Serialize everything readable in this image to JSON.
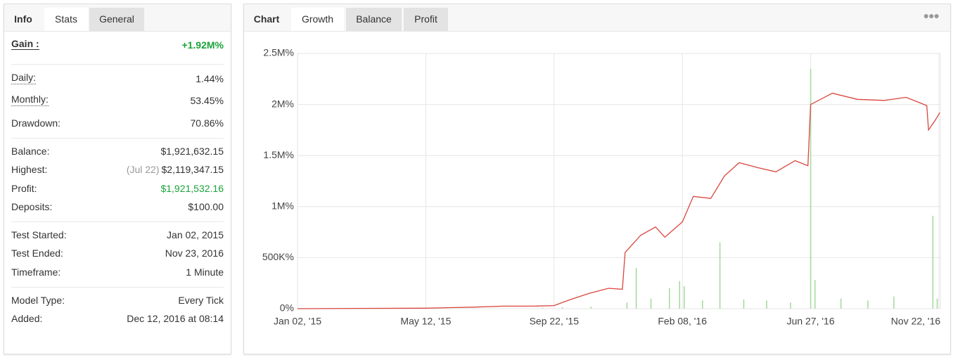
{
  "left_tabs": [
    "Info",
    "Stats",
    "General"
  ],
  "stats": {
    "gain": {
      "label": "Gain :",
      "value": "+1.92M%"
    },
    "groups": [
      [
        {
          "label": "Daily:",
          "value": "1.44%"
        },
        {
          "label": "Monthly:",
          "value": "53.45%"
        },
        {
          "label": "Drawdown:",
          "value": "70.86%"
        }
      ],
      [
        {
          "label": "Balance:",
          "value": "$1,921,632.15"
        },
        {
          "label": "Highest:",
          "note": "(Jul 22)",
          "value": "$2,119,347.15"
        },
        {
          "label": "Profit:",
          "value": "$1,921,532.16"
        },
        {
          "label": "Deposits:",
          "value": "$100.00"
        }
      ],
      [
        {
          "label": "Test Started:",
          "value": "Jan 02, 2015"
        },
        {
          "label": "Test Ended:",
          "value": "Nov 23, 2016"
        },
        {
          "label": "Timeframe:",
          "value": "1 Minute"
        }
      ],
      [
        {
          "label": "Model Type:",
          "value": "Every Tick"
        },
        {
          "label": "Added:",
          "value": "Dec 12, 2016 at 08:14"
        }
      ]
    ]
  },
  "chart_tabs": [
    "Chart",
    "Growth",
    "Balance",
    "Profit"
  ],
  "chart_data": {
    "type": "line",
    "grid": true,
    "xlim": [
      "2015-01-02",
      "2016-11-23"
    ],
    "xticks": [
      {
        "value": "2015-01-02",
        "label": "Jan 02, '15"
      },
      {
        "value": "2015-05-12",
        "label": "May 12, '15"
      },
      {
        "value": "2015-09-22",
        "label": "Sep 22, '15"
      },
      {
        "value": "2016-02-08",
        "label": "Feb 08, '16"
      },
      {
        "value": "2016-06-27",
        "label": "Jun 27, '16"
      },
      {
        "value": "2016-11-22",
        "label": "Nov 22, '16"
      }
    ],
    "ylim": [
      0,
      2500000
    ],
    "yticks": [
      {
        "value": 0,
        "label": "0%"
      },
      {
        "value": 500000,
        "label": "500K%"
      },
      {
        "value": 1000000,
        "label": "1M%"
      },
      {
        "value": 1500000,
        "label": "1.5M%"
      },
      {
        "value": 2000000,
        "label": "2M%"
      },
      {
        "value": 2500000,
        "label": "2.5M%"
      }
    ],
    "series": [
      {
        "type": "line",
        "color": "#d9453d",
        "x": [
          "2015-01-02",
          "2015-03-01",
          "2015-05-12",
          "2015-07-01",
          "2015-08-01",
          "2015-09-01",
          "2015-09-22",
          "2015-10-10",
          "2015-10-30",
          "2015-11-20",
          "2015-12-05",
          "2015-12-08",
          "2015-12-25",
          "2016-01-10",
          "2016-01-20",
          "2016-02-08",
          "2016-02-20",
          "2016-03-10",
          "2016-03-25",
          "2016-04-10",
          "2016-05-01",
          "2016-05-20",
          "2016-06-10",
          "2016-06-24",
          "2016-06-27",
          "2016-07-22",
          "2016-08-20",
          "2016-09-20",
          "2016-10-15",
          "2016-11-08",
          "2016-11-10",
          "2016-11-18",
          "2016-11-23"
        ],
        "values": [
          0,
          3000,
          5000,
          15000,
          25000,
          25000,
          30000,
          90000,
          150000,
          200000,
          190000,
          550000,
          720000,
          800000,
          700000,
          850000,
          1100000,
          1080000,
          1300000,
          1430000,
          1380000,
          1340000,
          1450000,
          1400000,
          2000000,
          2110000,
          2050000,
          2040000,
          2070000,
          1990000,
          1750000,
          1850000,
          1920000
        ]
      },
      {
        "type": "bar",
        "color": "#a8dba0",
        "x": [
          "2015-09-10",
          "2015-10-01",
          "2015-11-01",
          "2015-12-10",
          "2015-12-20",
          "2016-01-05",
          "2016-01-25",
          "2016-02-05",
          "2016-02-10",
          "2016-03-01",
          "2016-03-20",
          "2016-04-15",
          "2016-05-10",
          "2016-06-05",
          "2016-06-27",
          "2016-07-02",
          "2016-08-01",
          "2016-09-01",
          "2016-10-01",
          "2016-11-15",
          "2016-11-20"
        ],
        "values": [
          10000,
          15000,
          20000,
          60000,
          400000,
          100000,
          200000,
          270000,
          220000,
          80000,
          650000,
          90000,
          80000,
          60000,
          2350000,
          280000,
          100000,
          80000,
          120000,
          910000,
          100000
        ]
      }
    ]
  }
}
